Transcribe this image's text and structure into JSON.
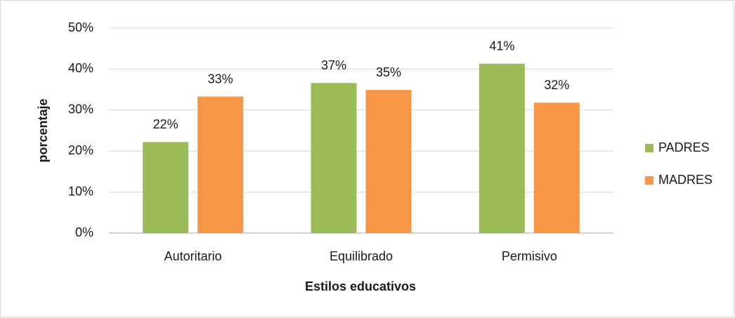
{
  "chart_data": {
    "type": "bar",
    "x_label": "Estilos educativos",
    "y_label": "porcentaje",
    "categories": [
      "Autoritario",
      "Equilibrado",
      "Permisivo"
    ],
    "series": [
      {
        "name": "PADRES",
        "color": "#9bbb59",
        "values": [
          22.2,
          36.6,
          41.3
        ],
        "value_labels": [
          "22%",
          "37%",
          "41%"
        ]
      },
      {
        "name": "MADRES",
        "color": "#f79646",
        "values": [
          33.3,
          34.9,
          31.8
        ],
        "value_labels": [
          "33%",
          "35%",
          "32%"
        ]
      }
    ],
    "ylim": [
      0,
      50
    ],
    "yticks": [
      {
        "value": 0,
        "label": "0%"
      },
      {
        "value": 10,
        "label": "10%"
      },
      {
        "value": 20,
        "label": "20%"
      },
      {
        "value": 30,
        "label": "30%"
      },
      {
        "value": 40,
        "label": "40%"
      },
      {
        "value": 50,
        "label": "50%"
      }
    ],
    "grid": true,
    "legend": "right"
  }
}
